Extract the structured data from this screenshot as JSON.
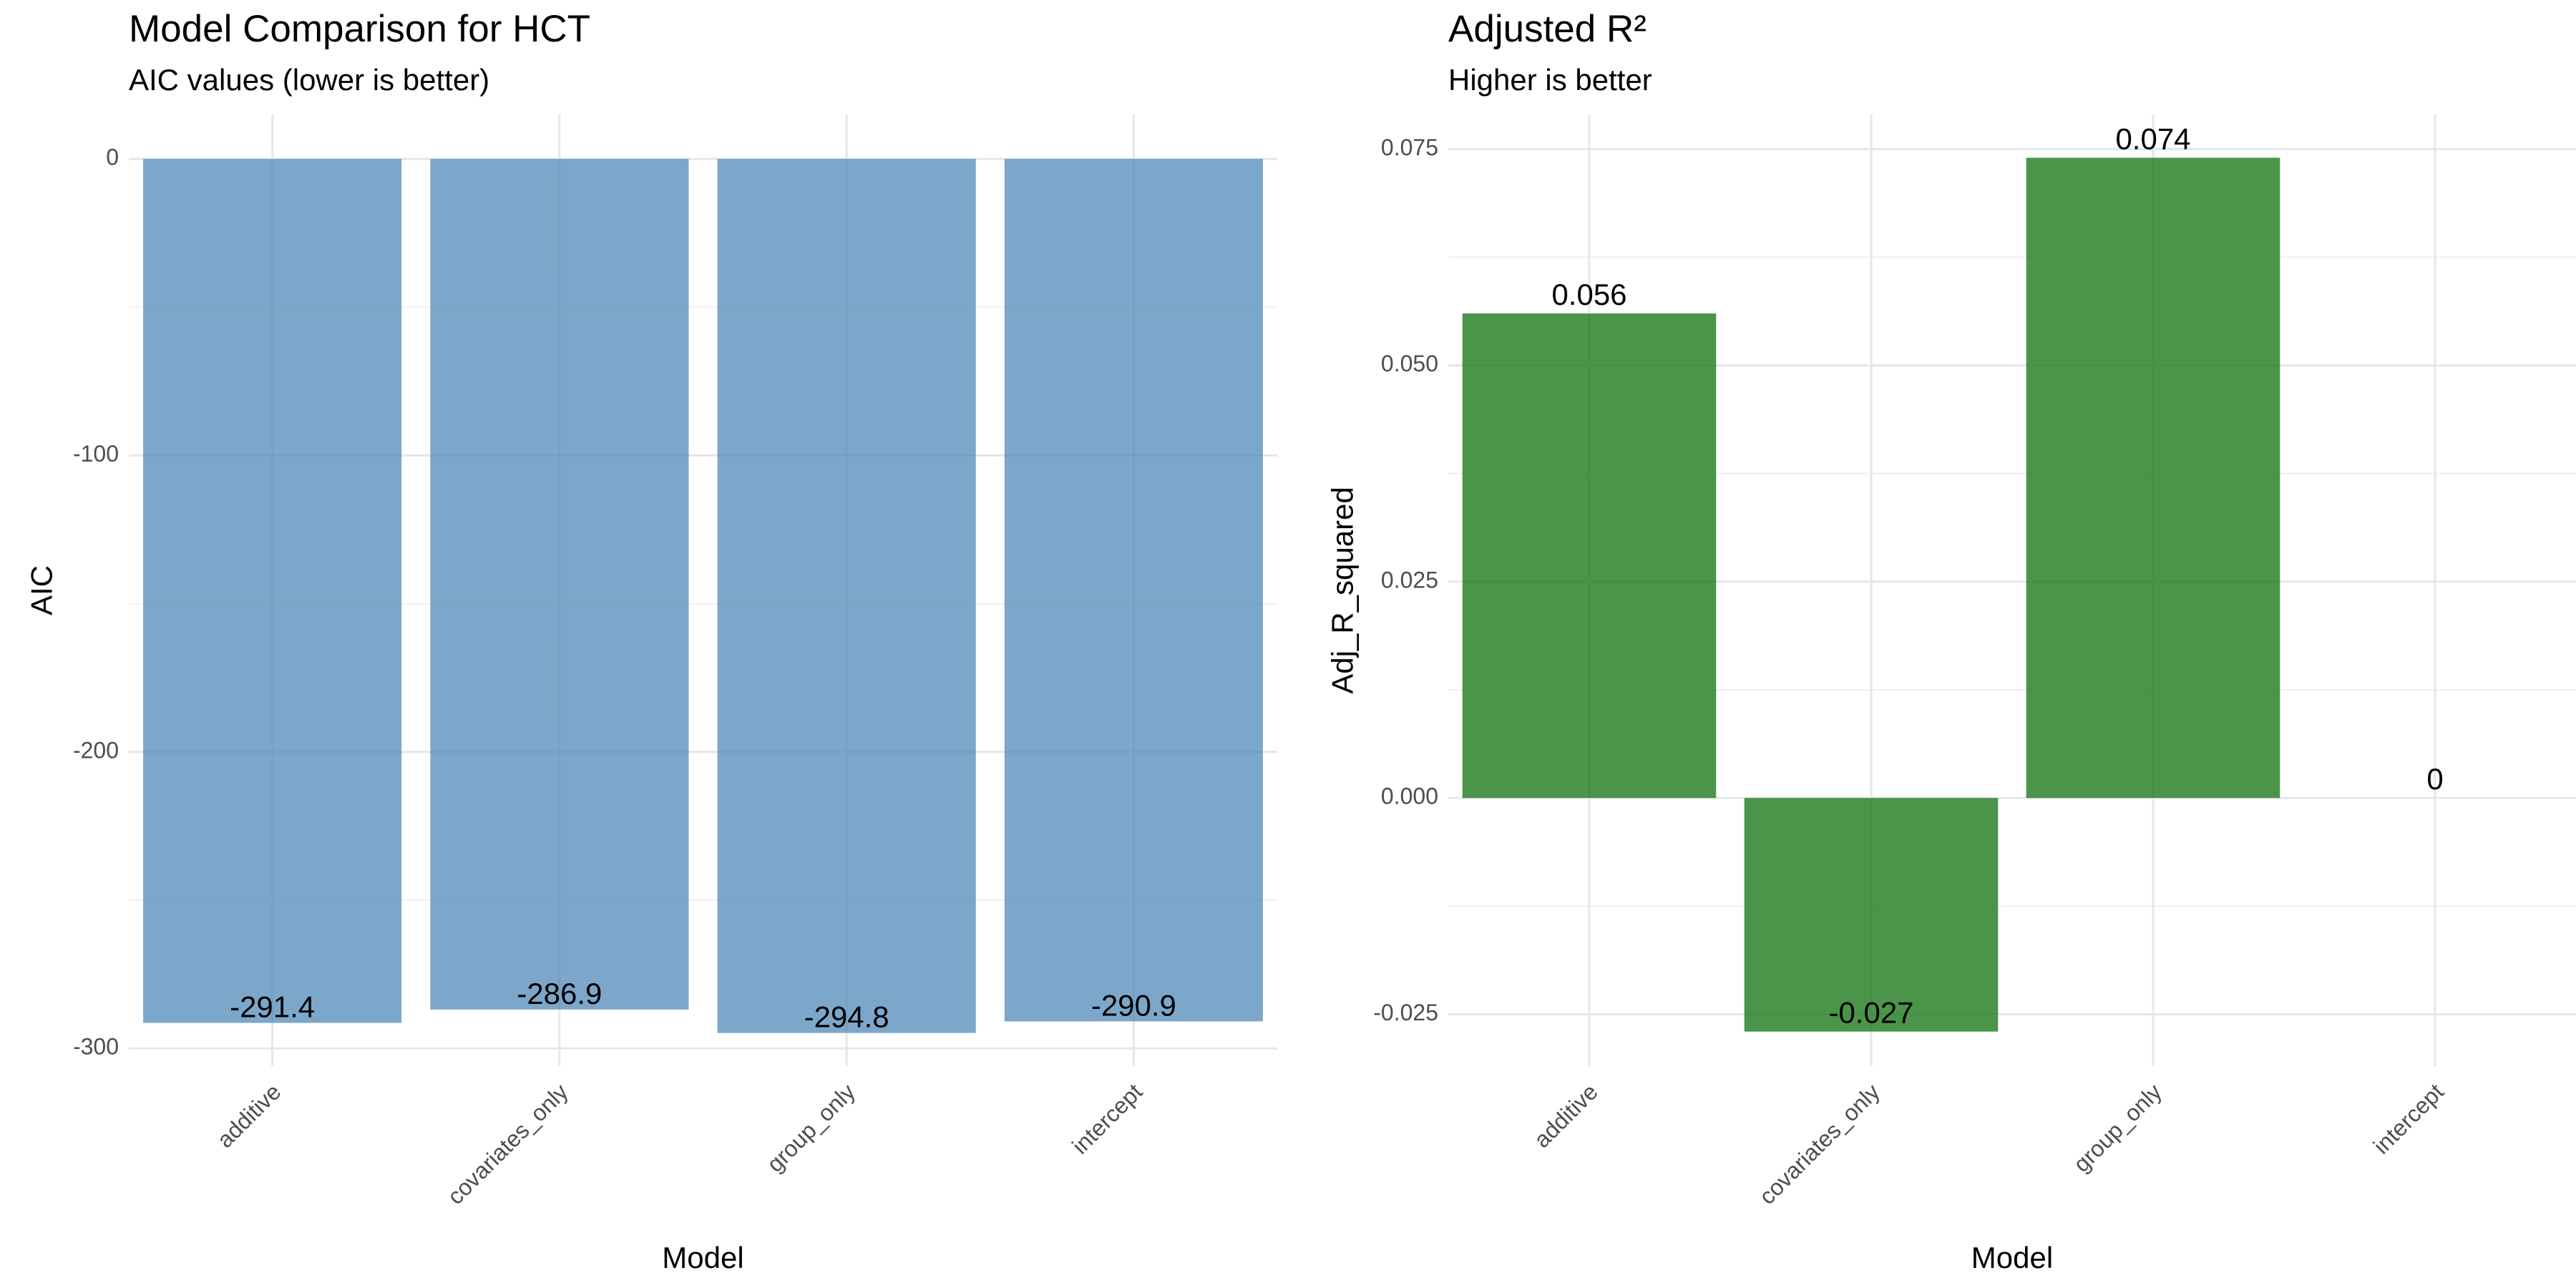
{
  "chart_data": [
    {
      "type": "bar",
      "title": "Model Comparison for HCT",
      "subtitle": "AIC values (lower is better)",
      "xlabel": "Model",
      "ylabel": "AIC",
      "categories": [
        "additive",
        "covariates_only",
        "group_only",
        "intercept"
      ],
      "values": [
        -291.4,
        -286.9,
        -294.8,
        -290.9
      ],
      "data_labels": [
        "-291.4",
        "-286.9",
        "-294.8",
        "-290.9"
      ],
      "ylim": [
        -306,
        15
      ],
      "yticks": [
        0,
        -100,
        -200,
        -300
      ],
      "ytick_labels": [
        "0",
        "-100",
        "-200",
        "-300"
      ],
      "bar_color": "#4682B4",
      "bar_opacity": 0.7,
      "grid": true,
      "legend": "none"
    },
    {
      "type": "bar",
      "title": "Adjusted R²",
      "subtitle": "Higher is better",
      "xlabel": "Model",
      "ylabel": "Adj_R_squared",
      "categories": [
        "additive",
        "covariates_only",
        "group_only",
        "intercept"
      ],
      "values": [
        0.056,
        -0.027,
        0.074,
        0
      ],
      "data_labels": [
        "0.056",
        "-0.027",
        "0.074",
        "0"
      ],
      "ylim": [
        -0.031,
        0.079
      ],
      "yticks": [
        0.075,
        0.05,
        0.025,
        0.0,
        -0.025
      ],
      "ytick_labels": [
        "0.075",
        "0.050",
        "0.025",
        "0.000",
        "-0.025"
      ],
      "bar_color": "#1E7B1E",
      "bar_opacity": 0.8,
      "grid": true,
      "legend": "none"
    }
  ]
}
